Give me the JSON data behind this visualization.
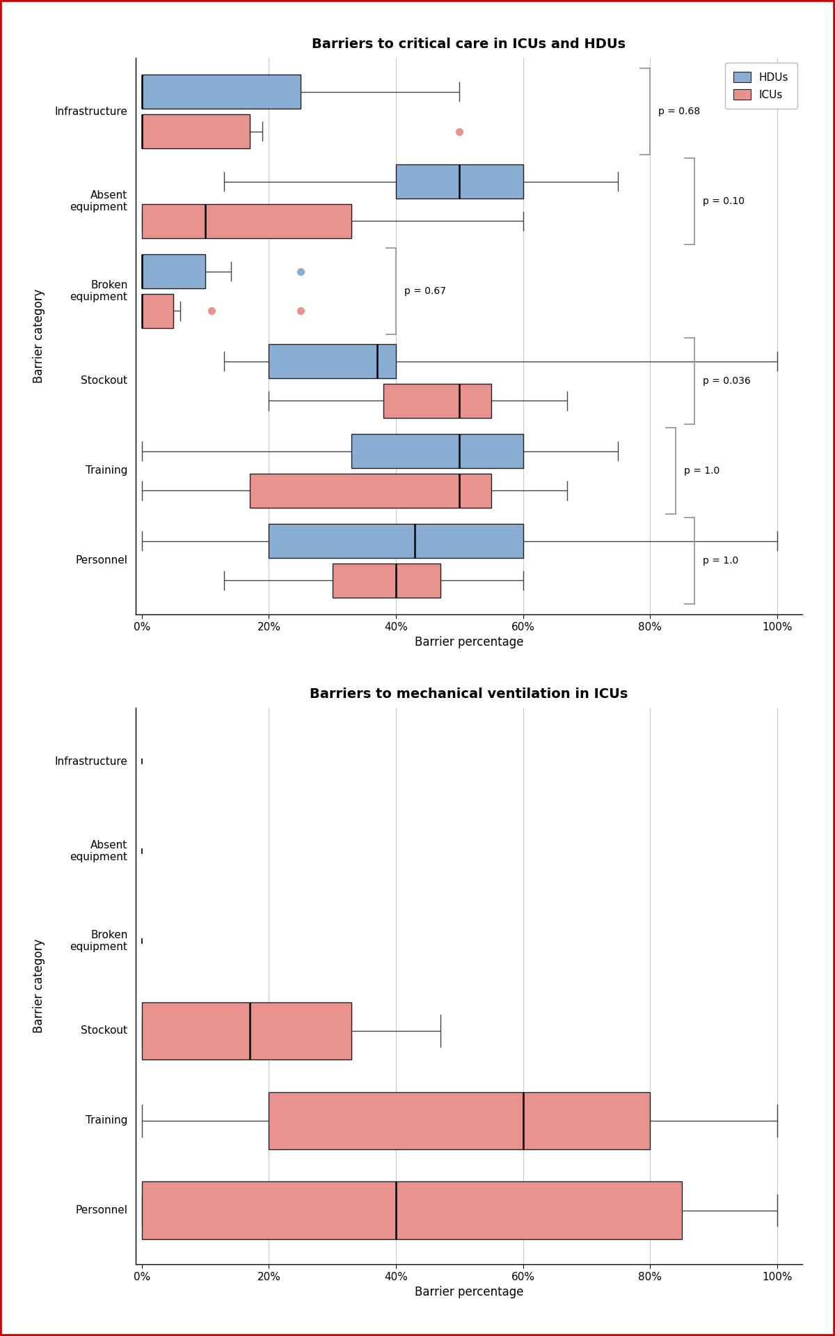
{
  "title1": "Barriers to critical care in ICUs and HDUs",
  "title2": "Barriers to mechanical ventilation in ICUs",
  "xlabel": "Barrier percentage",
  "ylabel": "Barrier category",
  "categories_display": [
    "Infrastructure",
    "Absent\nequipment",
    "Broken\nequipment",
    "Stockout",
    "Training",
    "Personnel"
  ],
  "categories_key": [
    "Infrastructure",
    "Absent equipment",
    "Broken equipment",
    "Stockout",
    "Training",
    "Personnel"
  ],
  "hdu_color": "#8aadd4",
  "icu_color": "#e8938f",
  "edge_color": "#222222",
  "bg_color": "#ffffff",
  "grid_color": "#cccccc",
  "border_color": "#cc0000",
  "xticks": [
    0.0,
    0.2,
    0.4,
    0.6,
    0.8,
    1.0
  ],
  "xticklabels": [
    "0%",
    "20%",
    "40%",
    "60%",
    "80%",
    "100%"
  ],
  "plot1_hdu": {
    "Infrastructure": [
      0,
      0,
      0,
      25,
      50,
      []
    ],
    "Absent equipment": [
      13,
      40,
      50,
      60,
      75,
      []
    ],
    "Broken equipment": [
      0,
      0,
      0,
      10,
      14,
      [
        25
      ]
    ],
    "Stockout": [
      13,
      20,
      37,
      40,
      100,
      []
    ],
    "Training": [
      0,
      33,
      50,
      60,
      75,
      []
    ],
    "Personnel": [
      0,
      20,
      43,
      60,
      100,
      []
    ]
  },
  "plot1_icu": {
    "Infrastructure": [
      0,
      0,
      0,
      17,
      19,
      [
        50
      ]
    ],
    "Absent equipment": [
      0,
      0,
      10,
      33,
      60,
      []
    ],
    "Broken equipment": [
      0,
      0,
      0,
      5,
      6,
      [
        11,
        25
      ]
    ],
    "Stockout": [
      20,
      38,
      50,
      55,
      67,
      []
    ],
    "Training": [
      0,
      17,
      50,
      55,
      67,
      []
    ],
    "Personnel": [
      13,
      30,
      40,
      47,
      60,
      []
    ]
  },
  "plot1_pvals": [
    "p = 0.68",
    "p = 0.10",
    "p = 0.67",
    "p = 0.036",
    "p = 1.0",
    "p = 1.0"
  ],
  "plot1_bracket_x": [
    0.8,
    0.87,
    0.4,
    0.87,
    0.84,
    0.87
  ],
  "plot2_icu": {
    "Infrastructure": null,
    "Absent equipment": null,
    "Broken equipment": null,
    "Stockout": [
      0,
      0,
      17,
      33,
      47,
      []
    ],
    "Training": [
      0,
      20,
      60,
      80,
      100,
      []
    ],
    "Personnel": [
      0,
      0,
      40,
      85,
      100,
      []
    ]
  }
}
